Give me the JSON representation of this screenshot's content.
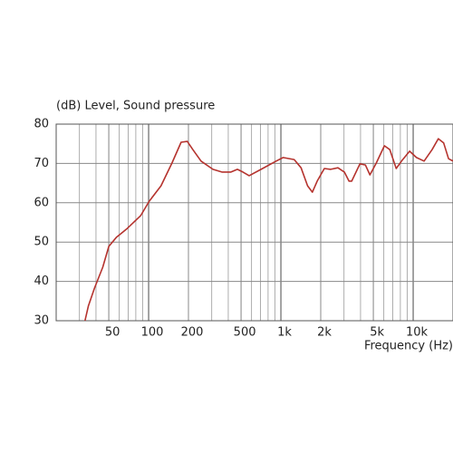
{
  "chart_data": {
    "type": "line",
    "title": "(dB)  Level, Sound pressure",
    "x_label": "Frequency  (Hz)",
    "log_x": true,
    "grid": true,
    "xlim": [
      20,
      20000
    ],
    "xticks": [
      50,
      100,
      200,
      500,
      {
        "value": 1000,
        "label": "1k"
      },
      {
        "value": 2000,
        "label": "2k"
      },
      {
        "value": 5000,
        "label": "5k"
      },
      {
        "value": 10000,
        "label": "10k"
      }
    ],
    "ylim": [
      30,
      80
    ],
    "yticks": [
      30,
      40,
      50,
      60,
      70,
      80
    ],
    "series": [
      {
        "color": "#b5332e",
        "x": [
          33,
          35,
          39,
          45,
          50,
          57,
          68,
          87,
          101,
          124,
          150,
          176,
          196,
          216,
          249,
          306,
          358,
          419,
          469,
          516,
          575,
          727,
          920,
          1040,
          1260,
          1420,
          1590,
          1730,
          1880,
          2130,
          2380,
          2700,
          3020,
          3270,
          3430,
          3960,
          4350,
          4710,
          5260,
          6060,
          6660,
          7440,
          8170,
          9400,
          10600,
          12100,
          13900,
          15500,
          17000,
          18500,
          20000
        ],
        "values": [
          30,
          33.7,
          38.3,
          43.6,
          48.9,
          51.2,
          53.3,
          56.7,
          60.4,
          64.3,
          70.1,
          75.4,
          75.6,
          73.5,
          70.6,
          68.5,
          67.8,
          67.8,
          68.5,
          67.8,
          66.9,
          68.7,
          70.6,
          71.5,
          71,
          68.9,
          64.3,
          62.7,
          65.5,
          68.7,
          68.5,
          68.9,
          67.8,
          65.5,
          65.5,
          69.9,
          69.6,
          67.1,
          70.1,
          74.5,
          73.5,
          68.7,
          70.6,
          73.1,
          71.5,
          70.6,
          73.5,
          76.3,
          75.2,
          71.2,
          70.6
        ]
      }
    ]
  }
}
